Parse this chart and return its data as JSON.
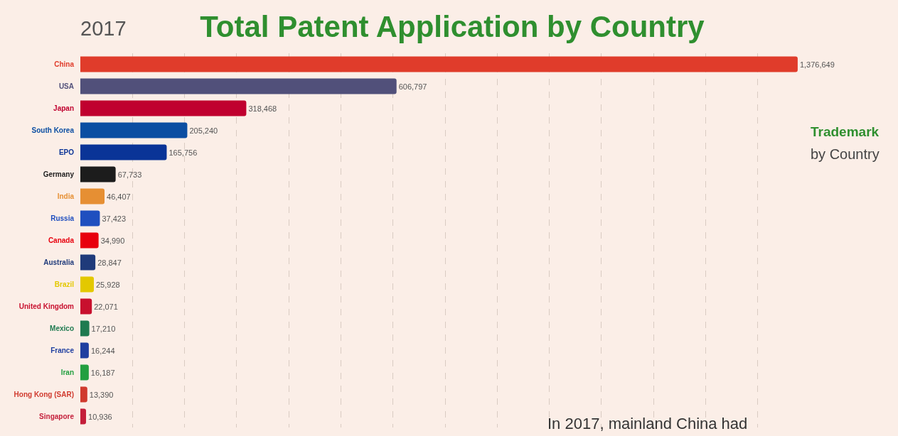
{
  "chart_data": {
    "type": "bar",
    "orientation": "horizontal",
    "title": "Total Patent Application by Country",
    "subtitle": "2017",
    "annotations": [
      "Trademark",
      "by Country",
      "In 2017, mainland China had"
    ],
    "categories": [
      "China",
      "USA",
      "Japan",
      "South Korea",
      "EPO",
      "Germany",
      "India",
      "Russia",
      "Canada",
      "Australia",
      "Brazil",
      "United Kingdom",
      "Mexico",
      "France",
      "Iran",
      "Hong Kong (SAR)",
      "Singapore"
    ],
    "values": [
      1376649,
      606797,
      318468,
      205240,
      165756,
      67733,
      46407,
      37423,
      34990,
      28847,
      25928,
      22071,
      17210,
      16244,
      16187,
      13390,
      10936
    ],
    "colors": [
      "#e03c2b",
      "#51507a",
      "#c0002f",
      "#0b4ea2",
      "#0a3497",
      "#1c1c1c",
      "#e68f33",
      "#1f4fbf",
      "#e8000d",
      "#1f3a7a",
      "#e3c800",
      "#c8102e",
      "#1e7a50",
      "#1f3fa0",
      "#239f40",
      "#d03a2e",
      "#c41e3a"
    ],
    "value_labels": [
      "1,376,649",
      "606,797",
      "318,468",
      "205,240",
      "165,756",
      "67,733",
      "46,407",
      "37,423",
      "34,990",
      "28,847",
      "25,928",
      "22,071",
      "17,210",
      "16,244",
      "16,187",
      "13,390",
      "10,936"
    ],
    "xticks": [
      {
        "value": 100000,
        "label": null
      },
      {
        "value": 200000,
        "label": null
      },
      {
        "value": 300000,
        "label": null
      },
      {
        "value": 400000,
        "label": null
      },
      {
        "value": 500000,
        "label": null
      },
      {
        "value": 600000,
        "label": null
      },
      {
        "value": 700000,
        "label": null
      },
      {
        "value": 800000,
        "label": null
      },
      {
        "value": 900000,
        "label": null
      },
      {
        "value": 1000000,
        "label": null
      },
      {
        "value": 1100000,
        "label": null
      },
      {
        "value": 1200000,
        "label": null
      },
      {
        "value": 1300000,
        "label": null
      }
    ],
    "grid": "x",
    "tick_labels": "y"
  }
}
